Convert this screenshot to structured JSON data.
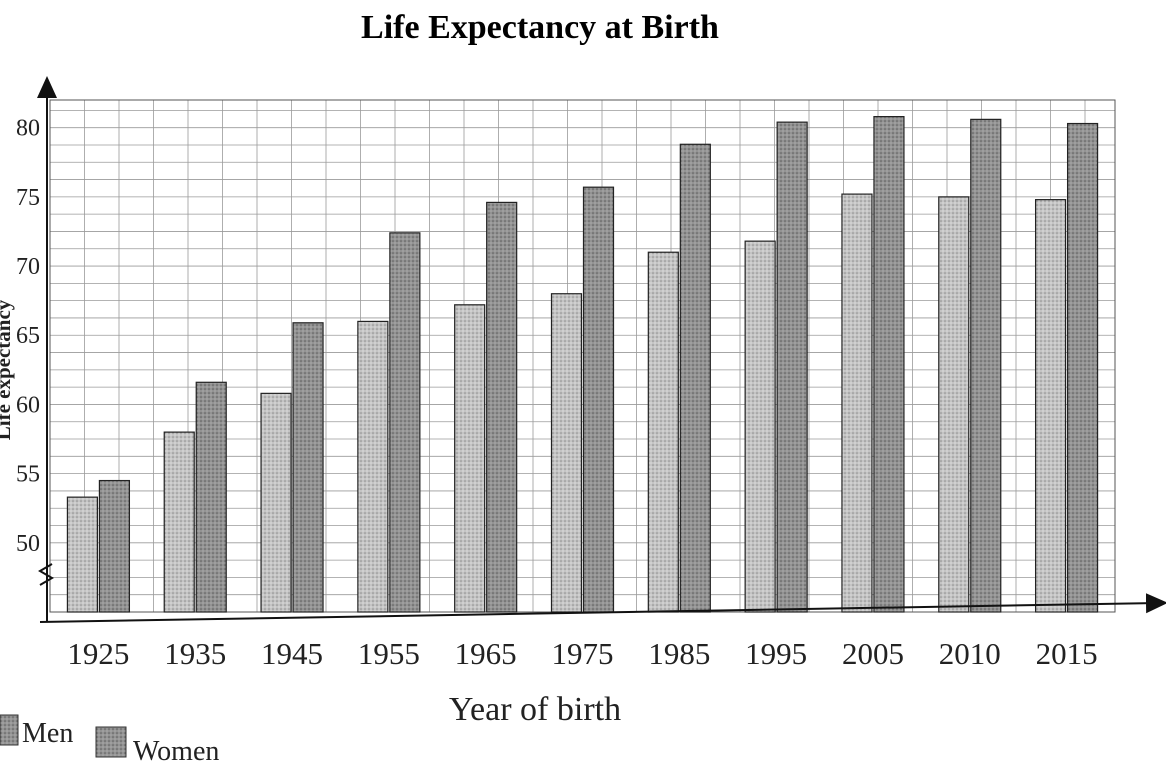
{
  "chart_data": {
    "type": "bar",
    "title": "Life Expectancy at Birth",
    "xlabel": "Year of birth",
    "ylabel": "Life expectancy",
    "categories": [
      "1925",
      "1935",
      "1945",
      "1955",
      "1965",
      "1975",
      "1985",
      "1995",
      "2005",
      "2010",
      "2015"
    ],
    "series": [
      {
        "name": "Men",
        "values": [
          53.3,
          58.0,
          60.8,
          66.0,
          67.2,
          68.0,
          71.0,
          71.8,
          75.2,
          75.0,
          74.8
        ],
        "color": "#b8b8b8"
      },
      {
        "name": "Women",
        "values": [
          54.5,
          61.6,
          65.9,
          72.4,
          74.6,
          75.7,
          78.8,
          80.4,
          80.8,
          80.6,
          80.3
        ],
        "color": "#8a8a8a"
      }
    ],
    "yticks": [
      "50",
      "55",
      "60",
      "65",
      "70",
      "75",
      "80"
    ],
    "ylim": [
      45,
      82
    ],
    "grid": true,
    "y_axis_break": true,
    "legend_position": "bottom-left"
  }
}
